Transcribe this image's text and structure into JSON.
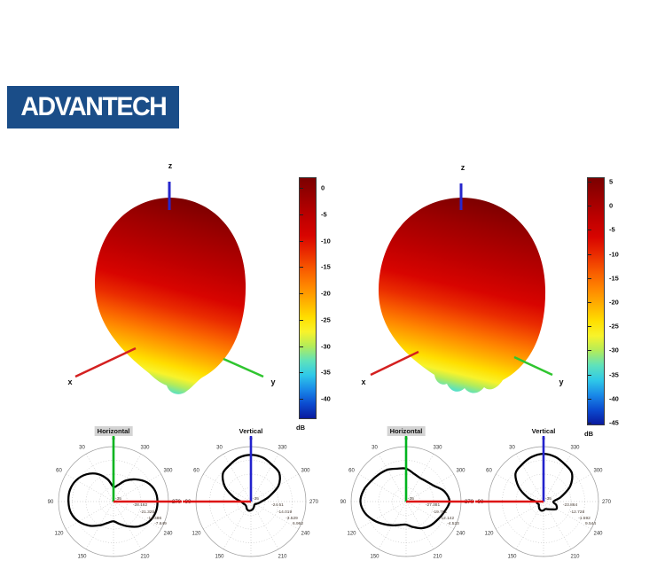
{
  "logo": {
    "text": "ADVANTECH",
    "bg_color": "#1a4d88",
    "text_color": "#ffffff"
  },
  "chart_data": [
    {
      "type": "surface3d",
      "name": "3d-radiation-pattern-left",
      "description": "3D antenna radiation pattern: egg-shaped main lobe, jet colormap, dark red at top fading through orange and yellow to a small cyan minor lobe at the bottom",
      "axis_labels": {
        "x": "x",
        "y": "y",
        "z": "z"
      },
      "colormap": "jet",
      "colorbar": {
        "unit": "dB",
        "ticks": [
          "0",
          "-5",
          "-10",
          "-15",
          "-20",
          "-25",
          "-30",
          "-35",
          "-40"
        ],
        "top_frac": 0.044,
        "bottom_frac": 0.916
      }
    },
    {
      "type": "surface3d",
      "name": "3d-radiation-pattern-right",
      "description": "3D antenna radiation pattern: slightly wider egg-shaped main lobe, jet colormap, cyan bumpy minor lobes at the bottom",
      "axis_labels": {
        "x": "x",
        "y": "y",
        "z": "z"
      },
      "colormap": "jet",
      "colorbar": {
        "unit": "dB",
        "ticks": [
          "5",
          "0",
          "-5",
          "-10",
          "-15",
          "-20",
          "-25",
          "-30",
          "-35",
          "-40",
          "-45"
        ],
        "top_frac": 0.018,
        "bottom_frac": 0.989
      }
    },
    {
      "type": "polar",
      "name": "polar-horizontal-1",
      "title": "Horizontal",
      "title_highlighted": true,
      "angle_direction": "counterclockwise-from-top",
      "angle_labels": [
        {
          "text": "0",
          "deg": 0
        },
        {
          "text": "30",
          "deg": 30
        },
        {
          "text": "60",
          "deg": 60
        },
        {
          "text": "90",
          "deg": 90
        },
        {
          "text": "120",
          "deg": 120
        },
        {
          "text": "150",
          "deg": 150
        },
        {
          "text": "210",
          "deg": 210
        },
        {
          "text": "240",
          "deg": 240
        },
        {
          "text": "270",
          "deg": 270
        },
        {
          "text": "300",
          "deg": 300
        },
        {
          "text": "330",
          "deg": 330
        }
      ],
      "center_label": "-35",
      "center_value_db": -35,
      "ring_labels": [
        "-28.162",
        "-21.325",
        "-14.486",
        "-7.649"
      ],
      "ring_values_db": [
        -28.162,
        -21.325,
        -14.486,
        -7.649
      ],
      "up_axis_color": "#00b41e",
      "side_axis_color": "#dd1111",
      "side_axis_side": "right",
      "curve_color": "#000000",
      "r_fractions_step15deg": [
        0.27,
        0.42,
        0.58,
        0.7,
        0.78,
        0.82,
        0.82,
        0.8,
        0.73,
        0.62,
        0.5,
        0.4,
        0.36,
        0.42,
        0.52,
        0.64,
        0.74,
        0.79,
        0.8,
        0.78,
        0.7,
        0.57,
        0.44,
        0.31
      ]
    },
    {
      "type": "polar",
      "name": "polar-vertical-1",
      "title": "Vertical",
      "title_highlighted": false,
      "angle_direction": "counterclockwise-from-top",
      "angle_labels": [
        {
          "text": "0",
          "deg": 0
        },
        {
          "text": "30",
          "deg": 30
        },
        {
          "text": "60",
          "deg": 60
        },
        {
          "text": "90",
          "deg": 90
        },
        {
          "text": "120",
          "deg": 120
        },
        {
          "text": "150",
          "deg": 150
        },
        {
          "text": "210",
          "deg": 210
        },
        {
          "text": "240",
          "deg": 240
        },
        {
          "text": "270",
          "deg": 270
        },
        {
          "text": "300",
          "deg": 300
        },
        {
          "text": "330",
          "deg": 330
        }
      ],
      "center_label": "-35",
      "center_value_db": -35,
      "ring_labels": [
        "-24.51",
        "-14.019",
        "-3.529",
        "6.962"
      ],
      "ring_values_db": [
        -24.51,
        -14.019,
        -3.529,
        6.962
      ],
      "up_axis_color": "#2222cc",
      "side_axis_color": "#dd1111",
      "side_axis_side": "left",
      "curve_color": "#000000",
      "r_fractions_step15deg": [
        0.85,
        0.83,
        0.77,
        0.72,
        0.55,
        0.33,
        0.18,
        0.14,
        0.12,
        0.12,
        0.15,
        0.17,
        0.16,
        0.14,
        0.11,
        0.09,
        0.09,
        0.13,
        0.19,
        0.34,
        0.58,
        0.73,
        0.77,
        0.83
      ]
    },
    {
      "type": "polar",
      "name": "polar-horizontal-2",
      "title": "Horizontal",
      "title_highlighted": true,
      "angle_direction": "counterclockwise-from-top",
      "angle_labels": [
        {
          "text": "0",
          "deg": 0
        },
        {
          "text": "30",
          "deg": 30
        },
        {
          "text": "60",
          "deg": 60
        },
        {
          "text": "90",
          "deg": 90
        },
        {
          "text": "120",
          "deg": 120
        },
        {
          "text": "150",
          "deg": 150
        },
        {
          "text": "210",
          "deg": 210
        },
        {
          "text": "240",
          "deg": 240
        },
        {
          "text": "270",
          "deg": 270
        },
        {
          "text": "300",
          "deg": 300
        },
        {
          "text": "330",
          "deg": 330
        }
      ],
      "center_label": "-35",
      "center_value_db": -35,
      "ring_labels": [
        "-27.381",
        "-19.761",
        "-12.142",
        "-4.523"
      ],
      "ring_values_db": [
        -27.381,
        -19.761,
        -12.142,
        -4.523
      ],
      "up_axis_color": "#00b41e",
      "side_axis_color": "#dd1111",
      "side_axis_side": "right",
      "curve_color": "#000000",
      "r_fractions_step15deg": [
        0.6,
        0.62,
        0.67,
        0.7,
        0.74,
        0.8,
        0.83,
        0.78,
        0.68,
        0.58,
        0.5,
        0.44,
        0.42,
        0.48,
        0.56,
        0.62,
        0.66,
        0.72,
        0.79,
        0.72,
        0.58,
        0.52,
        0.5,
        0.53
      ]
    },
    {
      "type": "polar",
      "name": "polar-vertical-2",
      "title": "Vertical",
      "title_highlighted": false,
      "angle_direction": "counterclockwise-from-top",
      "angle_labels": [
        {
          "text": "0",
          "deg": 0
        },
        {
          "text": "30",
          "deg": 30
        },
        {
          "text": "60",
          "deg": 60
        },
        {
          "text": "90",
          "deg": 90
        },
        {
          "text": "120",
          "deg": 120
        },
        {
          "text": "150",
          "deg": 150
        },
        {
          "text": "210",
          "deg": 210
        },
        {
          "text": "240",
          "deg": 240
        },
        {
          "text": "270",
          "deg": 270
        },
        {
          "text": "300",
          "deg": 300
        },
        {
          "text": "330",
          "deg": 330
        }
      ],
      "center_label": "-35",
      "center_value_db": -35,
      "ring_labels": [
        "-23.864",
        "-12.728",
        "-1.592",
        "9.544"
      ],
      "ring_values_db": [
        -23.864,
        -12.728,
        -1.592,
        9.544
      ],
      "up_axis_color": "#2222cc",
      "side_axis_color": "#dd1111",
      "side_axis_side": "left",
      "curve_color": "#000000",
      "r_fractions_step15deg": [
        0.87,
        0.84,
        0.78,
        0.72,
        0.52,
        0.3,
        0.14,
        0.12,
        0.1,
        0.12,
        0.15,
        0.17,
        0.16,
        0.14,
        0.16,
        0.2,
        0.27,
        0.24,
        0.18,
        0.33,
        0.56,
        0.73,
        0.78,
        0.84
      ]
    }
  ]
}
